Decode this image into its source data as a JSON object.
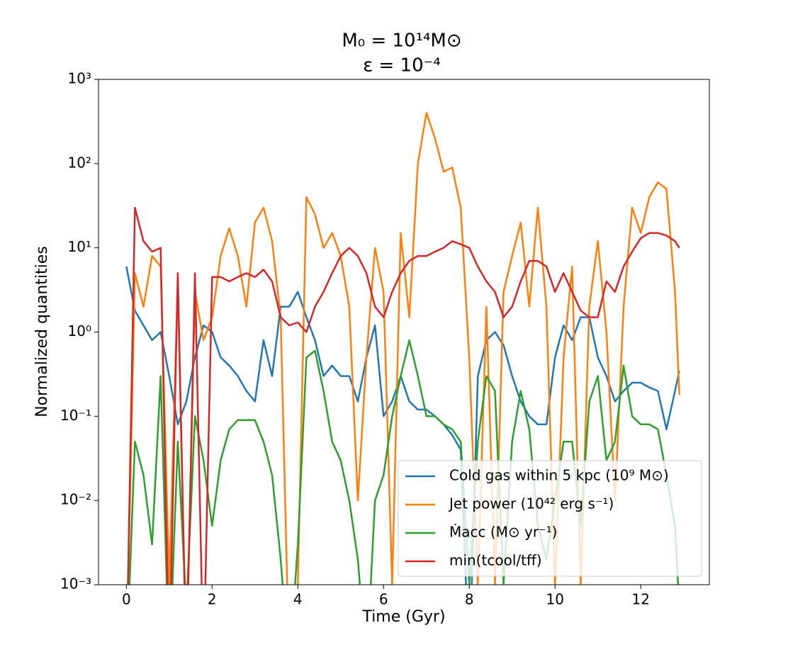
{
  "chart_data": {
    "type": "line",
    "title": [
      "M₀ = 10¹⁴M⊙",
      "ε = 10⁻⁴"
    ],
    "xlabel": "Time (Gyr)",
    "ylabel": "Normalized quantities",
    "yscale": "log",
    "legend": "lower right",
    "xlim": [
      -0.65,
      13.6
    ],
    "xticks": [
      0,
      2,
      4,
      6,
      8,
      10,
      12
    ],
    "ylim": [
      0.001,
      1000
    ],
    "yticks": [
      {
        "value": 0.001,
        "label": "10⁻³"
      },
      {
        "value": 0.01,
        "label": "10⁻²"
      },
      {
        "value": 0.1,
        "label": "10⁻¹"
      },
      {
        "value": 1,
        "label": "10⁰"
      },
      {
        "value": 10,
        "label": "10¹"
      },
      {
        "value": 100,
        "label": "10²"
      },
      {
        "value": 1000,
        "label": "10³"
      }
    ],
    "x": [
      0,
      0.2,
      0.4,
      0.6,
      0.8,
      1.0,
      1.2,
      1.4,
      1.6,
      1.8,
      2.0,
      2.2,
      2.4,
      2.6,
      2.8,
      3.0,
      3.2,
      3.4,
      3.6,
      3.8,
      4.0,
      4.2,
      4.4,
      4.6,
      4.8,
      5.0,
      5.2,
      5.4,
      5.6,
      5.8,
      6.0,
      6.2,
      6.4,
      6.6,
      6.8,
      7.0,
      7.2,
      7.4,
      7.6,
      7.8,
      8.0,
      8.2,
      8.4,
      8.6,
      8.8,
      9.0,
      9.2,
      9.4,
      9.6,
      9.8,
      10.0,
      10.2,
      10.4,
      10.6,
      10.8,
      11.0,
      11.2,
      11.4,
      11.6,
      11.8,
      12.0,
      12.2,
      12.4,
      12.6,
      12.8,
      12.9
    ],
    "series": [
      {
        "name": "Cold gas within 5 kpc (10⁹ M⊙)",
        "color": "#1f77b4",
        "values": [
          6,
          1.8,
          1.2,
          0.8,
          1.0,
          0.3,
          0.08,
          0.15,
          0.5,
          1.2,
          1.0,
          0.5,
          0.4,
          0.3,
          0.2,
          0.15,
          0.8,
          0.3,
          2,
          2,
          3,
          1.5,
          0.8,
          0.3,
          0.4,
          0.3,
          0.3,
          0.15,
          0.5,
          1.2,
          0.1,
          0.15,
          0.3,
          0.15,
          0.12,
          0.12,
          0.1,
          0.08,
          0.06,
          0.04,
          0.0001,
          0.3,
          0.8,
          1.0,
          0.7,
          0.3,
          0.15,
          0.1,
          0.08,
          0.08,
          0.5,
          1.2,
          0.8,
          1.5,
          1.5,
          0.5,
          0.3,
          0.15,
          0.2,
          0.25,
          0.25,
          0.22,
          0.2,
          0.07,
          0.2,
          0.35
        ]
      },
      {
        "name": "Jet power (10⁴² erg s⁻¹)",
        "color": "#ff7f0e",
        "values": [
          0.0001,
          5,
          2,
          8,
          6,
          0.001,
          4,
          0.0001,
          3,
          0.8,
          1.5,
          8,
          17,
          8,
          2,
          20,
          30,
          12,
          1.5,
          0.0001,
          0.001,
          40,
          25,
          10,
          15,
          8,
          2,
          0.01,
          0.5,
          10,
          3,
          0.001,
          15,
          1.5,
          100,
          400,
          200,
          80,
          90,
          30,
          0.5,
          0.001,
          2,
          0.001,
          3,
          8,
          20,
          2,
          30,
          2,
          0.001,
          0.5,
          6,
          0.001,
          2,
          12,
          1,
          0.01,
          2,
          30,
          15,
          40,
          60,
          50,
          3,
          0.18
        ]
      },
      {
        "name": "Ṁacc (M⊙ yr⁻¹)",
        "color": "#2ca02c",
        "values": [
          0.0001,
          0.05,
          0.02,
          0.003,
          0.3,
          0.0001,
          0.05,
          0.0005,
          0.1,
          0.03,
          0.005,
          0.03,
          0.07,
          0.09,
          0.09,
          0.09,
          0.05,
          0.02,
          0.002,
          0.0001,
          0.003,
          0.5,
          0.6,
          0.2,
          0.05,
          0.03,
          0.01,
          0.002,
          0.0001,
          0.01,
          0.02,
          0.1,
          0.3,
          0.8,
          0.3,
          0.1,
          0.1,
          0.08,
          0.07,
          0.05,
          0.001,
          0.05,
          0.3,
          0.2,
          0.001,
          0.05,
          0.2,
          0.07,
          0.005,
          0.002,
          0.01,
          0.05,
          0.05,
          0.005,
          0.15,
          0.3,
          0.03,
          0.05,
          0.4,
          0.1,
          0.08,
          0.08,
          0.07,
          0.02,
          0.005,
          0.0005
        ]
      },
      {
        "name": "min(tcool/tff)",
        "color": "#d62728",
        "values": [
          0.0001,
          30,
          12,
          9,
          10,
          0.0001,
          5,
          0.0001,
          5,
          0.0001,
          4.5,
          4.5,
          4,
          4.5,
          5,
          4.5,
          5.5,
          4,
          1.5,
          1.2,
          1.3,
          1,
          2,
          3,
          5,
          8,
          10,
          8,
          5,
          2,
          1.5,
          3,
          5,
          7,
          8,
          8,
          9,
          10,
          12,
          11,
          10,
          6,
          4,
          3,
          1.5,
          2,
          4,
          7,
          7,
          6,
          3,
          5,
          3,
          1.8,
          1.5,
          1.5,
          4,
          3,
          6,
          9,
          13,
          15,
          15,
          14,
          12,
          10
        ]
      }
    ]
  }
}
